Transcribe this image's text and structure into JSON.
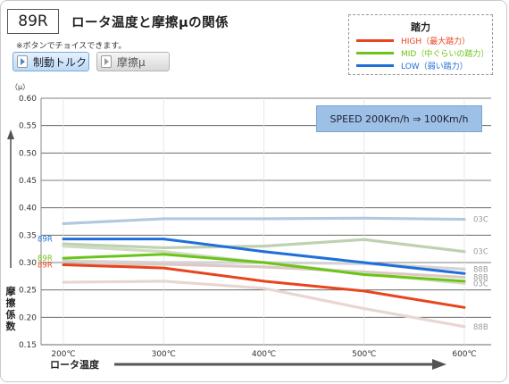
{
  "header": {
    "code": "89R",
    "title": "ロータ温度と摩擦μの関係",
    "note": "※ボタンでチョイスできます。"
  },
  "buttons": [
    {
      "label": "制動トルク",
      "active": true
    },
    {
      "label": "摩擦μ",
      "active": false
    }
  ],
  "legend": {
    "title": "踏力",
    "items": [
      {
        "label": "HIGH（最大踏力）",
        "color": "#e8441e"
      },
      {
        "label": "MID（中ぐらいの踏力）",
        "color": "#6cc419"
      },
      {
        "label": "LOW（弱い踏力）",
        "color": "#1f6fd9"
      }
    ]
  },
  "speed_box": "SPEED 200Km/h ⇒ 100Km/h",
  "chart_data": {
    "type": "line",
    "ylabel_unit": "（μ）",
    "ylabel": "摩擦係数",
    "xlabel": "ロータ温度",
    "ylim": [
      0.15,
      0.6
    ],
    "x": [
      200,
      300,
      400,
      500,
      600
    ],
    "x_tick_labels": [
      "200℃",
      "300℃",
      "400℃",
      "500℃",
      "600℃"
    ],
    "y_ticks": [
      0.15,
      0.2,
      0.25,
      0.3,
      0.35,
      0.4,
      0.45,
      0.5,
      0.55,
      0.6
    ],
    "grid": true,
    "series": [
      {
        "name": "03C",
        "label_side": "right",
        "color": "#b2c8e0",
        "x": [
          200,
          300,
          400,
          500,
          600
        ],
        "values": [
          0.371,
          0.38,
          0.38,
          0.381,
          0.379
        ]
      },
      {
        "name": "03C",
        "label_side": "right",
        "color": "#bfd1b0",
        "x": [
          200,
          300,
          400,
          500,
          600
        ],
        "values": [
          0.334,
          0.327,
          0.33,
          0.342,
          0.32
        ]
      },
      {
        "name": "88B",
        "label_side": "right",
        "color": "#d4d4d4",
        "x": [
          200,
          300,
          400,
          500,
          600
        ],
        "values": [
          0.303,
          0.3,
          0.3,
          0.298,
          0.288
        ]
      },
      {
        "name": "88B",
        "label_side": "right",
        "color": "#ddc9c4",
        "x": [
          200,
          300,
          400,
          500,
          600
        ],
        "values": [
          0.296,
          0.297,
          0.292,
          0.283,
          0.273
        ]
      },
      {
        "name": "03C",
        "label_side": "right",
        "color": "#cfdcc3",
        "x": [
          200,
          300,
          400,
          500,
          600
        ],
        "values": [
          0.33,
          0.32,
          0.3,
          0.28,
          0.262
        ]
      },
      {
        "name": "88B",
        "label_side": "right",
        "color": "#e8d6d2",
        "x": [
          200,
          300,
          400,
          500,
          600
        ],
        "values": [
          0.264,
          0.266,
          0.253,
          0.216,
          0.183
        ]
      },
      {
        "name": "89R",
        "label_side": "left",
        "color": "#1f6fd9",
        "x": [
          200,
          300,
          400,
          500,
          600
        ],
        "values": [
          0.343,
          0.343,
          0.32,
          0.3,
          0.28
        ]
      },
      {
        "name": "89R",
        "label_side": "left",
        "color": "#6cc419",
        "x": [
          200,
          300,
          400,
          500,
          600
        ],
        "values": [
          0.308,
          0.315,
          0.3,
          0.278,
          0.266
        ]
      },
      {
        "name": "89R",
        "label_side": "left",
        "color": "#e8441e",
        "x": [
          200,
          300,
          400,
          500,
          600
        ],
        "values": [
          0.296,
          0.29,
          0.266,
          0.248,
          0.218
        ]
      }
    ]
  }
}
